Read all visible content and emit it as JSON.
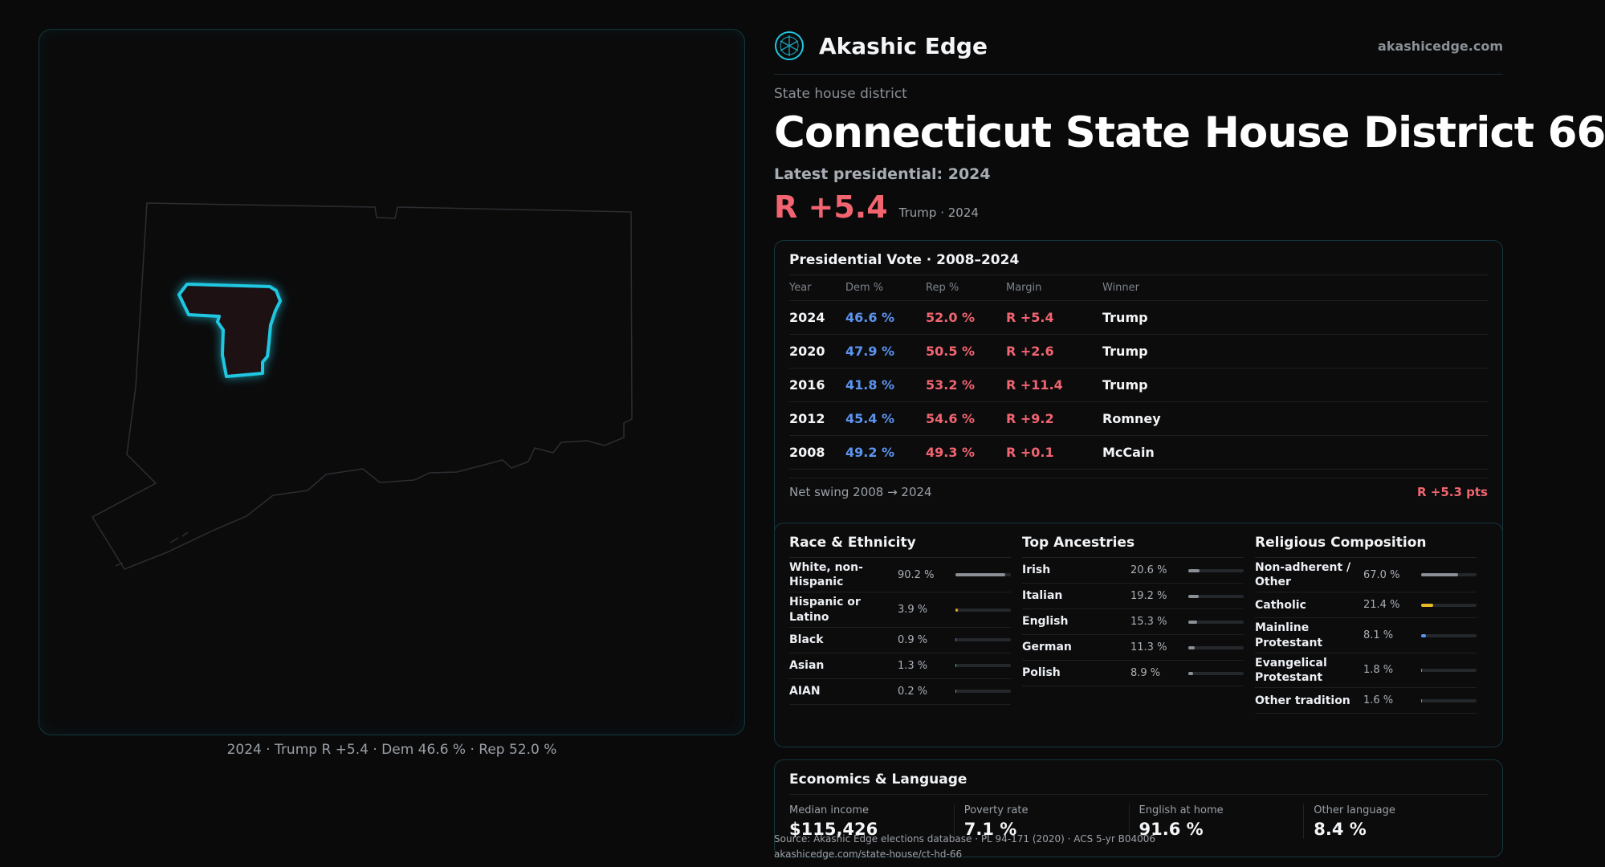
{
  "brand": {
    "name": "Akashic Edge",
    "url": "akashicedge.com"
  },
  "kicker": "State house district",
  "title": "Connecticut State House District 66",
  "latest_label": "Latest presidential: 2024",
  "margin": {
    "value": "R +5.4",
    "sub": "Trump · 2024"
  },
  "map_caption": "2024 · Trump R +5.4 · Dem 46.6 % · Rep 52.0 %",
  "colors": {
    "dem": "#5c94f0",
    "rep": "#f16470",
    "accent": "#1fc7e0"
  },
  "presidential": {
    "title": "Presidential Vote · 2008–2024",
    "headers": {
      "year": "Year",
      "dem": "Dem %",
      "rep": "Rep %",
      "margin": "Margin",
      "winner": "Winner"
    },
    "rows": [
      {
        "year": "2024",
        "dem": "46.6 %",
        "rep": "52.0 %",
        "margin": "R +5.4",
        "winner": "Trump"
      },
      {
        "year": "2020",
        "dem": "47.9 %",
        "rep": "50.5 %",
        "margin": "R +2.6",
        "winner": "Trump"
      },
      {
        "year": "2016",
        "dem": "41.8 %",
        "rep": "53.2 %",
        "margin": "R +11.4",
        "winner": "Trump"
      },
      {
        "year": "2012",
        "dem": "45.4 %",
        "rep": "54.6 %",
        "margin": "R +9.2",
        "winner": "Romney"
      },
      {
        "year": "2008",
        "dem": "49.2 %",
        "rep": "49.3 %",
        "margin": "R +0.1",
        "winner": "McCain"
      }
    ],
    "swing_label": "Net swing 2008 → 2024",
    "swing_value": "R +5.3 pts"
  },
  "race": {
    "title": "Race & Ethnicity",
    "items": [
      {
        "label": "White, non-Hispanic",
        "value": "90.2 %",
        "pct": 90.2,
        "color": "#8a9096"
      },
      {
        "label": "Hispanic or Latino",
        "value": "3.9 %",
        "pct": 3.9,
        "color": "#e0a030"
      },
      {
        "label": "Black",
        "value": "0.9 %",
        "pct": 0.9,
        "color": "#7c6cf0"
      },
      {
        "label": "Asian",
        "value": "1.3 %",
        "pct": 1.3,
        "color": "#30c0a0"
      },
      {
        "label": "AIAN",
        "value": "0.2 %",
        "pct": 0.2,
        "color": "#8a9096"
      }
    ]
  },
  "ancestry": {
    "title": "Top Ancestries",
    "items": [
      {
        "label": "Irish",
        "value": "20.6 %",
        "pct": 20.6,
        "color": "#8a9096"
      },
      {
        "label": "Italian",
        "value": "19.2 %",
        "pct": 19.2,
        "color": "#8a9096"
      },
      {
        "label": "English",
        "value": "15.3 %",
        "pct": 15.3,
        "color": "#8a9096"
      },
      {
        "label": "German",
        "value": "11.3 %",
        "pct": 11.3,
        "color": "#8a9096"
      },
      {
        "label": "Polish",
        "value": "8.9 %",
        "pct": 8.9,
        "color": "#8a9096"
      }
    ]
  },
  "religion": {
    "title": "Religious Composition",
    "items": [
      {
        "label": "Non-adherent / Other",
        "value": "67.0 %",
        "pct": 67.0,
        "color": "#8a9096"
      },
      {
        "label": "Catholic",
        "value": "21.4 %",
        "pct": 21.4,
        "color": "#e8b82a"
      },
      {
        "label": "Mainline Protestant",
        "value": "8.1 %",
        "pct": 8.1,
        "color": "#5c94f0"
      },
      {
        "label": "Evangelical Protestant",
        "value": "1.8 %",
        "pct": 1.8,
        "color": "#f16470"
      },
      {
        "label": "Other tradition",
        "value": "1.6 %",
        "pct": 1.6,
        "color": "#8a9096"
      }
    ]
  },
  "economics": {
    "title": "Economics & Language",
    "items": [
      {
        "label": "Median income",
        "value": "$115,426"
      },
      {
        "label": "Poverty rate",
        "value": "7.1 %"
      },
      {
        "label": "English at home",
        "value": "91.6 %"
      },
      {
        "label": "Other language",
        "value": "8.4 %"
      }
    ]
  },
  "source": {
    "line": "Source: Akashic Edge elections database · PL 94-171 (2020) · ACS 5-yr B04006",
    "url": "akashicedge.com/state-house/ct-hd-66"
  }
}
